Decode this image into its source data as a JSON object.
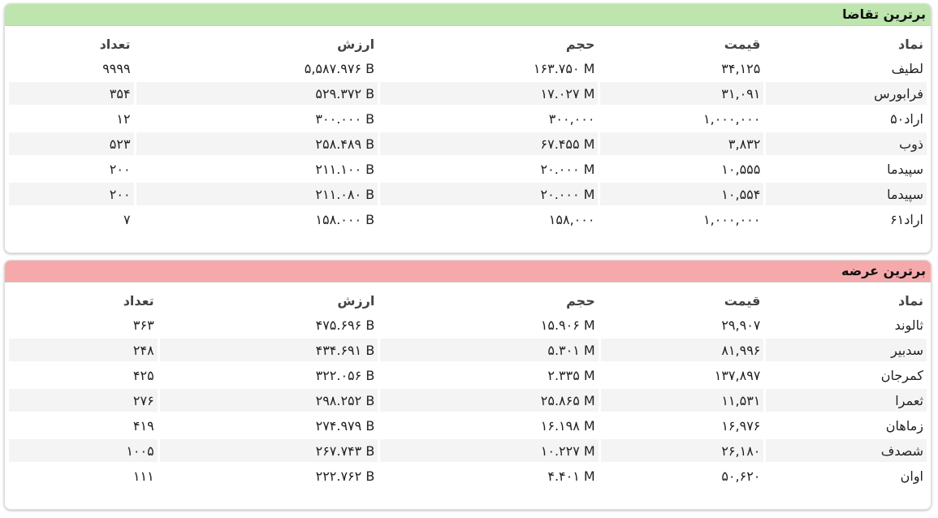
{
  "panels": [
    {
      "title": "برترین تقاضا",
      "headers": [
        "نماد",
        "قیمت",
        "حجم",
        "ارزش",
        "تعداد"
      ],
      "rows": [
        [
          "لطیف",
          "۳۴,۱۲۵",
          "۱۶۳.۷۵۰ M",
          "۵,۵۸۷.۹۷۶ B",
          "۹۹۹۹"
        ],
        [
          "فرابورس",
          "۳۱,۰۹۱",
          "۱۷.۰۲۷ M",
          "۵۲۹.۳۷۲ B",
          "۳۵۴"
        ],
        [
          "اراد۵۰",
          "۱,۰۰۰,۰۰۰",
          "۳۰۰,۰۰۰",
          "۳۰۰.۰۰۰ B",
          "۱۲"
        ],
        [
          "ذوب",
          "۳,۸۳۲",
          "۶۷.۴۵۵ M",
          "۲۵۸.۴۸۹ B",
          "۵۲۳"
        ],
        [
          "سپیدما",
          "۱۰,۵۵۵",
          "۲۰.۰۰۰ M",
          "۲۱۱.۱۰۰ B",
          "۲۰۰"
        ],
        [
          "سپیدما",
          "۱۰,۵۵۴",
          "۲۰.۰۰۰ M",
          "۲۱۱.۰۸۰ B",
          "۲۰۰"
        ],
        [
          "اراد۶۱",
          "۱,۰۰۰,۰۰۰",
          "۱۵۸,۰۰۰",
          "۱۵۸.۰۰۰ B",
          "۷"
        ]
      ]
    },
    {
      "title": "برترین عرضه",
      "headers": [
        "نماد",
        "قیمت",
        "حجم",
        "ارزش",
        "تعداد"
      ],
      "rows": [
        [
          "ثالوند",
          "۲۹,۹۰۷",
          "۱۵.۹۰۶ M",
          "۴۷۵.۶۹۶ B",
          "۳۶۳"
        ],
        [
          "سدبیر",
          "۸۱,۹۹۶",
          "۵.۳۰۱ M",
          "۴۳۴.۶۹۱ B",
          "۲۴۸"
        ],
        [
          "کمرجان",
          "۱۳۷,۸۹۷",
          "۲.۳۳۵ M",
          "۳۲۲.۰۵۶ B",
          "۴۲۵"
        ],
        [
          "ثعمرا",
          "۱۱,۵۳۱",
          "۲۵.۸۶۵ M",
          "۲۹۸.۲۵۲ B",
          "۲۷۶"
        ],
        [
          "زماهان",
          "۱۶,۹۷۶",
          "۱۶.۱۹۸ M",
          "۲۷۴.۹۷۹ B",
          "۴۱۹"
        ],
        [
          "شصدف",
          "۲۶,۱۸۰",
          "۱۰.۲۲۷ M",
          "۲۶۷.۷۴۳ B",
          "۱۰۰۵"
        ],
        [
          "اوان",
          "۵۰,۶۲۰",
          "۴.۴۰۱ M",
          "۲۲۲.۷۶۲ B",
          "۱۱۱"
        ]
      ]
    }
  ]
}
